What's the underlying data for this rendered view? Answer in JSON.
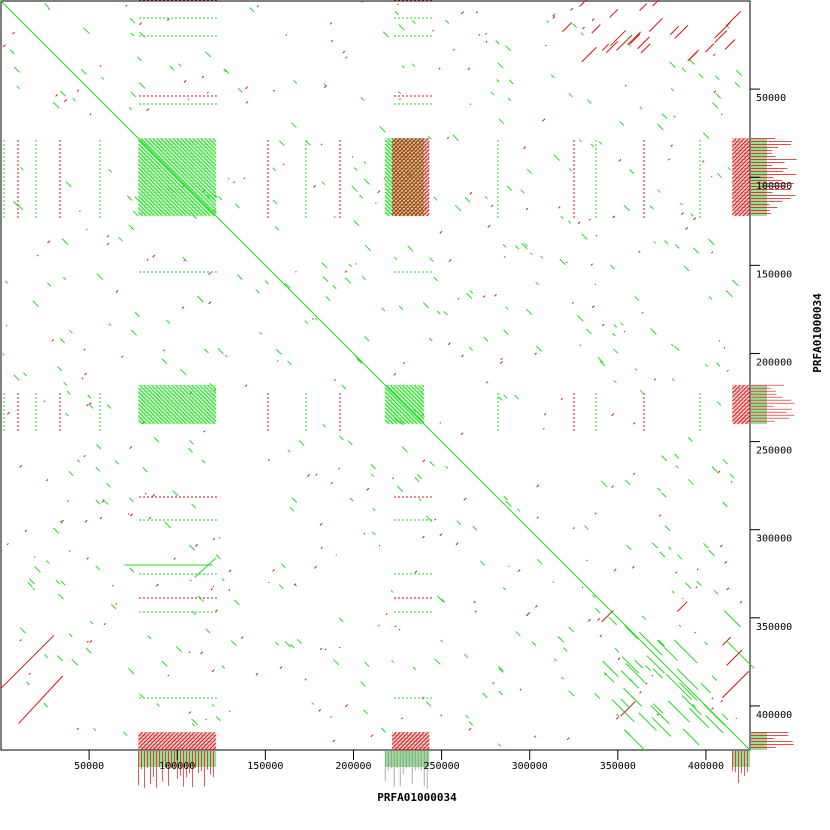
{
  "colors": {
    "forward": "#22dd22",
    "reverse": "#dd1111",
    "forward_fill": "#99dd99",
    "reverse_fill": "#ff8888",
    "axis": "#000000"
  },
  "chart_data": {
    "type": "scatter",
    "title": "",
    "xlabel": "PRFA01000034",
    "ylabel": "PRFA01000034",
    "xlim": [
      0,
      425000
    ],
    "ylim": [
      0,
      425000
    ],
    "x_ticks": [
      50000,
      100000,
      150000,
      200000,
      250000,
      300000,
      350000,
      400000
    ],
    "y_ticks": [
      50000,
      100000,
      150000,
      200000,
      250000,
      300000,
      350000,
      400000
    ],
    "grid": false,
    "legend": "none",
    "series": [
      {
        "strand": "forward",
        "segments": [
          [
            0,
            0,
            425000,
            425000
          ],
          [
            70000,
            320000,
            120000,
            320000
          ],
          [
            110000,
            327000,
            122000,
            316000
          ]
        ],
        "blocks": [
          [
            78000,
            122000,
            78000,
            122000
          ],
          [
            78000,
            122000,
            218000,
            240000
          ],
          [
            218000,
            240000,
            78000,
            122000
          ],
          [
            218000,
            240000,
            218000,
            240000
          ]
        ]
      },
      {
        "strand": "reverse",
        "segments": [
          [
            0,
            390000,
            30000,
            360000
          ],
          [
            10000,
            410000,
            35000,
            383000
          ]
        ],
        "blocks": [
          [
            222000,
            243000,
            78000,
            122000
          ],
          [
            415000,
            425000,
            78000,
            122000
          ],
          [
            415000,
            425000,
            218000,
            240000
          ],
          [
            78000,
            122000,
            415000,
            425000
          ],
          [
            222000,
            243000,
            415000,
            425000
          ]
        ]
      }
    ]
  }
}
